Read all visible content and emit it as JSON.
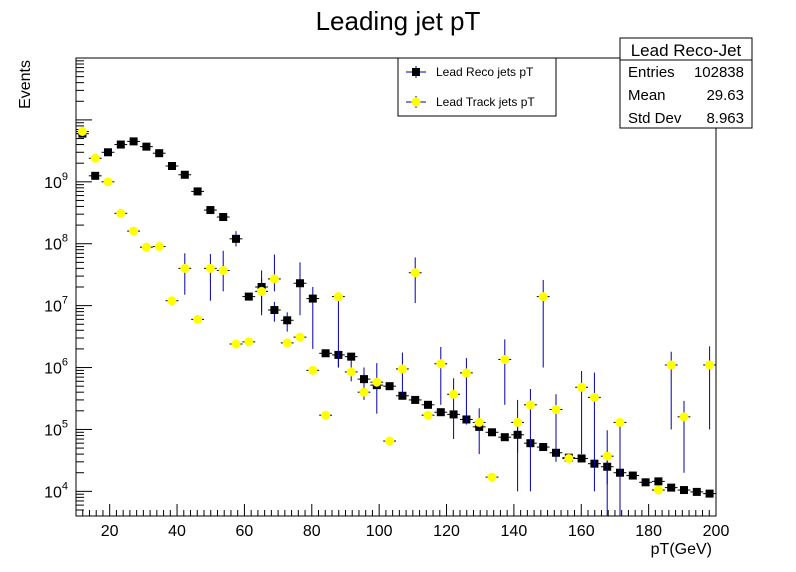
{
  "chart_data": {
    "type": "scatter",
    "title": "Leading jet pT",
    "xlabel": "pT(GeV)",
    "ylabel": "Events",
    "xlim": [
      10,
      200
    ],
    "ylim": [
      4000,
      100000000000
    ],
    "ylog": true,
    "x_bin_width": 3.8,
    "x_ticks": [
      "20",
      "40",
      "60",
      "80",
      "100",
      "120",
      "140",
      "160",
      "180",
      "200"
    ],
    "y_ticks": [
      {
        "base": "10",
        "exp": "4",
        "value": 10000
      },
      {
        "base": "10",
        "exp": "5",
        "value": 100000
      },
      {
        "base": "10",
        "exp": "6",
        "value": 1000000
      },
      {
        "base": "10",
        "exp": "7",
        "value": 10000000
      },
      {
        "base": "10",
        "exp": "8",
        "value": 100000000
      },
      {
        "base": "10",
        "exp": "9",
        "value": 1000000000
      }
    ],
    "legend_position": "top-center",
    "series": [
      {
        "name": "Lead Reco jets pT",
        "color": "#000000",
        "errorbar_color": "#0000aa",
        "marker": "square",
        "x": [
          11.9,
          15.7,
          19.5,
          23.3,
          27.1,
          30.9,
          34.7,
          38.5,
          42.3,
          46.1,
          49.9,
          53.7,
          57.5,
          61.3,
          65.1,
          68.9,
          72.7,
          76.5,
          80.3,
          84.1,
          87.9,
          91.7,
          95.5,
          99.3,
          103.1,
          106.9,
          110.7,
          114.5,
          118.3,
          122.1,
          125.9,
          129.7,
          133.5,
          137.3,
          141.1,
          144.9,
          148.7,
          152.5,
          156.3,
          160.1,
          163.9,
          167.7,
          171.5,
          175.3,
          179.1,
          182.9,
          186.7,
          190.5,
          194.3,
          198.1
        ],
        "y": [
          6000000000,
          1250000000,
          3000000000,
          4000000000,
          4500000000,
          3700000000,
          2900000000,
          1800000000,
          1300000000,
          700000000,
          350000000,
          270000000,
          120000000,
          14000000,
          20000000,
          8500000,
          5800000,
          23000000,
          13000000,
          1700000,
          1600000,
          1500000,
          650000,
          520000,
          500000,
          350000,
          300000,
          250000,
          190000,
          175000,
          145000,
          110000,
          90000,
          75000,
          82000,
          60000,
          52000,
          42000,
          35000,
          34000,
          28000,
          25000,
          20000,
          18000,
          14000,
          14500,
          11500,
          10500,
          9800,
          9200
        ],
        "y_err_low": [
          0,
          0,
          0,
          0,
          0,
          0,
          0,
          0,
          0,
          0,
          0,
          0,
          30000000,
          0,
          12000000,
          3000000,
          2000000,
          16000000,
          11000000,
          0,
          600000,
          900000,
          350000,
          0,
          0,
          0,
          0,
          0,
          0,
          0,
          0,
          0,
          0,
          0,
          40000,
          0,
          0,
          0,
          0,
          0,
          0,
          12000,
          16000,
          0,
          0,
          0,
          0,
          0,
          0,
          0
        ],
        "y_err_high": [
          0,
          0,
          0,
          0,
          0,
          0,
          0,
          0,
          0,
          0,
          0,
          0,
          40000000,
          0,
          8000000,
          3000000,
          2000000,
          27000000,
          7000000,
          0,
          0,
          0,
          350000,
          0,
          0,
          0,
          0,
          0,
          0,
          0,
          0,
          0,
          0,
          0,
          70000,
          0,
          0,
          0,
          0,
          0,
          0,
          20000,
          13000,
          0,
          0,
          0,
          0,
          0,
          0,
          0
        ]
      },
      {
        "name": "Lead Track jets pT",
        "color": "#ffff00",
        "errorbar_color": "#0000aa",
        "marker": "circle",
        "x": [
          11.9,
          15.7,
          19.5,
          23.3,
          27.1,
          30.9,
          34.7,
          38.5,
          42.3,
          46.1,
          49.9,
          53.7,
          57.5,
          61.3,
          65.1,
          68.9,
          72.7,
          76.5,
          80.3,
          84.1,
          87.9,
          91.7,
          95.5,
          99.3,
          103.1,
          106.9,
          110.7,
          114.5,
          118.3,
          122.1,
          125.9,
          129.7,
          133.5,
          137.3,
          141.1,
          144.9,
          148.7,
          152.5,
          156.3,
          160.1,
          163.9,
          167.7,
          171.5,
          175.3,
          179.1,
          182.9,
          186.7,
          190.5,
          194.3,
          198.1
        ],
        "y": [
          6500000000,
          2400000000,
          1000000000,
          310000000,
          160000000,
          88000000,
          90000000,
          12000000,
          40000000,
          6000000,
          40000000,
          37000000,
          2400000,
          2600000,
          17000000,
          27000000,
          2500000,
          3100000,
          900000,
          170000,
          14000000,
          850000,
          400000,
          580000,
          65000,
          950000,
          34000000,
          170000,
          1150000,
          370000,
          820000,
          130000,
          17000,
          1350000,
          130000,
          250000,
          14000000,
          210000,
          34000,
          480000,
          330000,
          37000,
          130000,
          0,
          0,
          10500,
          1100000,
          160000,
          0,
          1100000
        ],
        "y_err_low": [
          0,
          0,
          0,
          0,
          0,
          0,
          0,
          0,
          25000000,
          0,
          28000000,
          20000000,
          0,
          0,
          10000000,
          10000000,
          0,
          0,
          0,
          0,
          13000000,
          0,
          0,
          400000,
          0,
          600000,
          23000000,
          0,
          900000,
          300000,
          700000,
          90000,
          0,
          1100000,
          120000,
          240000,
          13000000,
          180000,
          0,
          440000,
          320000,
          33000,
          126000,
          0,
          0,
          0,
          1000000,
          140000,
          0,
          1000000
        ],
        "y_err_high": [
          0,
          0,
          0,
          0,
          0,
          0,
          0,
          0,
          30000000,
          0,
          28000000,
          40000000,
          0,
          0,
          20000000,
          40000000,
          0,
          0,
          0,
          0,
          0,
          0,
          0,
          600000,
          0,
          800000,
          26000000,
          0,
          1000000,
          300000,
          600000,
          90000,
          0,
          1500000,
          170000,
          200000,
          12000000,
          160000,
          0,
          400000,
          500000,
          60000,
          0,
          0,
          0,
          0,
          700000,
          130000,
          0,
          1100000
        ]
      }
    ]
  },
  "stats_box": {
    "title": "Lead Reco-Jet",
    "rows": [
      {
        "label": "Entries",
        "value": "102838"
      },
      {
        "label": "Mean",
        "value": "29.63"
      },
      {
        "label": "Std Dev",
        "value": "8.963"
      }
    ]
  }
}
